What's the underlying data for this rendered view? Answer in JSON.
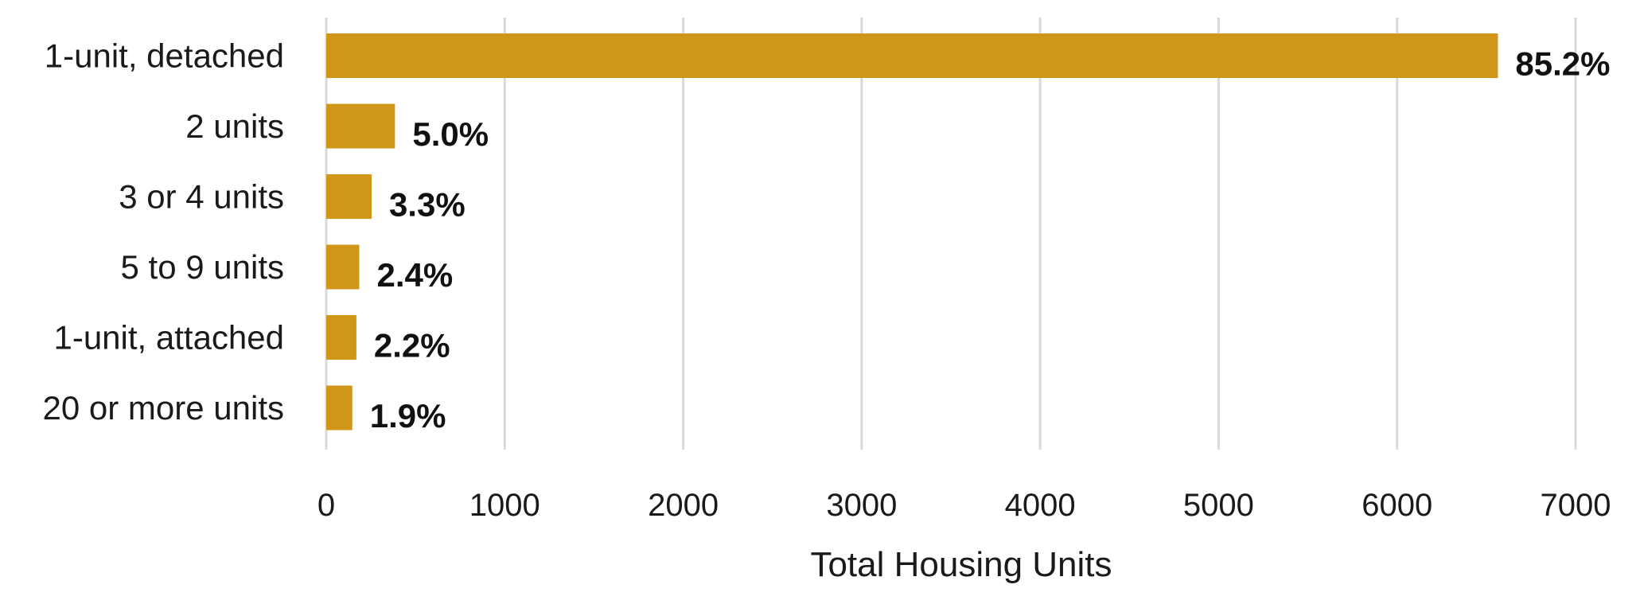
{
  "chart_data": {
    "type": "bar",
    "orientation": "horizontal",
    "categories": [
      "1-unit, detached",
      "2 units",
      "3 or 4 units",
      "5 to 9 units",
      "1-unit, attached",
      "20 or more units"
    ],
    "values": [
      6565,
      385,
      254,
      185,
      169,
      146
    ],
    "data_labels": [
      "85.2%",
      "5.0%",
      "3.3%",
      "2.4%",
      "2.2%",
      "1.9%"
    ],
    "title": "",
    "xlabel": "Total Housing Units",
    "ylabel": "",
    "xlim": [
      0,
      7000
    ],
    "xticks": [
      0,
      1000,
      2000,
      3000,
      4000,
      5000,
      6000,
      7000
    ],
    "xtick_labels": [
      "0",
      "1000",
      "2000",
      "3000",
      "4000",
      "5000",
      "6000",
      "7000"
    ],
    "grid": "vertical",
    "legend": "none",
    "colors": {
      "bar": "#D0961A",
      "grid": "#D9D9D9",
      "text": "#1a1a1a"
    }
  }
}
